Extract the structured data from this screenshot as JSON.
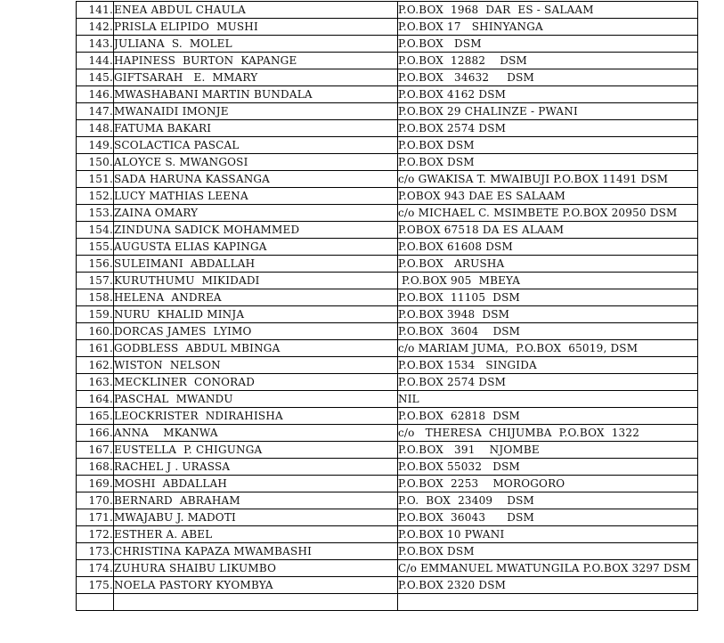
{
  "colors": {
    "background": "#ffffff",
    "border": "#000000",
    "text": "#111111"
  },
  "table": {
    "columns": [
      "number",
      "name",
      "address"
    ],
    "partial_next_row_visible": true,
    "rows": [
      {
        "no": "141.",
        "name": "ENEA ABDUL CHAULA",
        "address": "P.O.BOX  1968  DAR  ES - SALAAM"
      },
      {
        "no": "142.",
        "name": "PRISLA ELIPIDO  MUSHI",
        "address": "P.O.BOX 17   SHINYANGA"
      },
      {
        "no": "143.",
        "name": "JULIANA  S.  MOLEL",
        "address": "P.O.BOX   DSM"
      },
      {
        "no": "144.",
        "name": "HAPINESS  BURTON  KAPANGE",
        "address": "P.O.BOX  12882    DSM"
      },
      {
        "no": "145.",
        "name": "GIFTSARAH   E.  MMARY",
        "address": "P.O.BOX   34632     DSM"
      },
      {
        "no": "146.",
        "name": "MWASHABANI MARTIN BUNDALA",
        "address": "P.O.BOX 4162 DSM"
      },
      {
        "no": "147.",
        "name": "MWANAIDI IMONJE",
        "address": "P.O.BOX 29 CHALINZE - PWANI"
      },
      {
        "no": "148.",
        "name": "FATUMA BAKARI",
        "address": "P.O.BOX 2574 DSM"
      },
      {
        "no": "149.",
        "name": "SCOLACTICA PASCAL",
        "address": "P.O.BOX DSM"
      },
      {
        "no": "150.",
        "name": "ALOYCE S. MWANGOSI",
        "address": "P.O.BOX DSM"
      },
      {
        "no": "151.",
        "name": "SADA HARUNA KASSANGA",
        "address": "c/o GWAKISA T. MWAIBUJI P.O.BOX 11491 DSM"
      },
      {
        "no": "152.",
        "name": "LUCY MATHIAS LEENA",
        "address": "P.OBOX 943 DAE ES SALAAM"
      },
      {
        "no": "153.",
        "name": "ZAINA OMARY",
        "address": "c/o MICHAEL C. MSIMBETE P.O.BOX 20950 DSM"
      },
      {
        "no": "154.",
        "name": "ZINDUNA SADICK MOHAMMED",
        "address": "P.OBOX 67518 DA ES ALAAM"
      },
      {
        "no": "155.",
        "name": "AUGUSTA ELIAS KAPINGA",
        "address": "P.O.BOX 61608 DSM"
      },
      {
        "no": "156.",
        "name": "SULEIMANI  ABDALLAH",
        "address": "P.O.BOX   ARUSHA"
      },
      {
        "no": "157.",
        "name": "KURUTHUMU  MIKIDADI",
        "address": " P.O.BOX 905  MBEYA"
      },
      {
        "no": "158.",
        "name": "HELENA  ANDREA",
        "address": "P.O.BOX  11105  DSM"
      },
      {
        "no": "159.",
        "name": "NURU  KHALID MINJA",
        "address": "P.O.BOX 3948  DSM"
      },
      {
        "no": "160.",
        "name": "DORCAS JAMES  LYIMO",
        "address": "P.O.BOX  3604    DSM"
      },
      {
        "no": "161.",
        "name": "GODBLESS  ABDUL MBINGA",
        "address": "c/o MARIAM JUMA,  P.O.BOX  65019, DSM"
      },
      {
        "no": "162.",
        "name": "WISTON  NELSON",
        "address": "P.O.BOX 1534   SINGIDA"
      },
      {
        "no": "163.",
        "name": "MECKLINER  CONORAD",
        "address": "P.O.BOX 2574 DSM"
      },
      {
        "no": "164.",
        "name": "PASCHAL  MWANDU",
        "address": "NIL"
      },
      {
        "no": "165.",
        "name": "LEOCKRISTER  NDIRAHISHA",
        "address": "P.O.BOX  62818  DSM"
      },
      {
        "no": "166.",
        "name": "ANNA    MKANWA",
        "address": "c/o   THERESA  CHIJUMBA  P.O.BOX  1322"
      },
      {
        "no": "167.",
        "name": "EUSTELLA  P. CHIGUNGA",
        "address": "P.O.BOX   391    NJOMBE"
      },
      {
        "no": "168.",
        "name": "RACHEL J . URASSA",
        "address": "P.O.BOX 55032   DSM"
      },
      {
        "no": "169.",
        "name": "MOSHI  ABDALLAH",
        "address": "P.O.BOX  2253    MOROGORO"
      },
      {
        "no": "170.",
        "name": "BERNARD  ABRAHAM",
        "address": "P.O.  BOX  23409    DSM"
      },
      {
        "no": "171.",
        "name": "MWAJABU J. MADOTI",
        "address": "P.O.BOX  36043      DSM"
      },
      {
        "no": "172.",
        "name": "ESTHER A. ABEL",
        "address": "P.O.BOX 10 PWANI"
      },
      {
        "no": "173.",
        "name": "CHRISTINA KAPAZA MWAMBASHI",
        "address": "P.O.BOX DSM"
      },
      {
        "no": "174.",
        "name": "ZUHURA SHAIBU LIKUMBO",
        "address": "C/o EMMANUEL MWATUNGILA P.O.BOX 3297 DSM"
      },
      {
        "no": "175.",
        "name": "NOELA PASTORY KYOMBYA",
        "address": "P.O.BOX 2320 DSM"
      }
    ]
  }
}
